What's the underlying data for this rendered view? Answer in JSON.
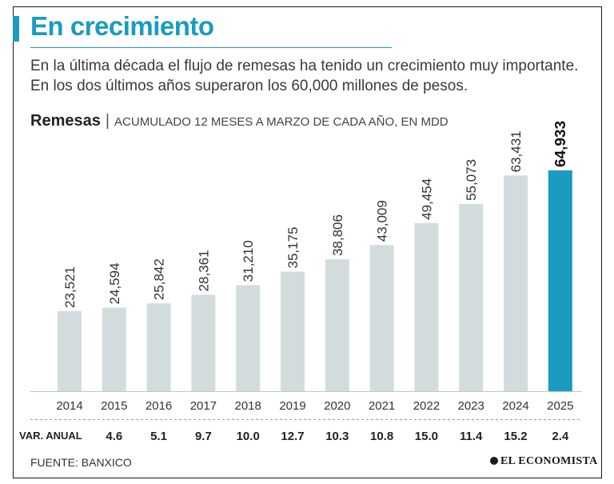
{
  "header": {
    "title": "En crecimiento",
    "description": "En la última década el flujo de remesas ha tenido un crecimiento muy importante. En los dos últimos años superaron los 60,000 millones de pesos.",
    "subtitle_bold": "Remesas",
    "subtitle_sep": "|",
    "subtitle_rest": "ACUMULADO 12 MESES A MARZO DE CADA AÑO,  EN MDD"
  },
  "colors": {
    "accent": "#1a9bbf",
    "bar": "#d3dcdd",
    "highlight": "#1a9bbf"
  },
  "chart_data": {
    "type": "bar",
    "title": "Remesas",
    "subtitle": "ACUMULADO 12 MESES A MARZO DE CADA AÑO,  EN MDD",
    "categories": [
      "2014",
      "2015",
      "2016",
      "2017",
      "2018",
      "2019",
      "2020",
      "2021",
      "2022",
      "2023",
      "2024",
      "2025"
    ],
    "values": [
      23521,
      24594,
      25842,
      28361,
      31210,
      35175,
      38806,
      43009,
      49454,
      55073,
      63431,
      64933
    ],
    "value_labels": [
      "23,521",
      "24,594",
      "25,842",
      "28,361",
      "31,210",
      "35,175",
      "38,806",
      "43,009",
      "49,454",
      "55,073",
      "63,431",
      "64,933"
    ],
    "highlight_index": 11,
    "ylim": [
      0,
      64933
    ],
    "grid": false,
    "var_anual_label": "VAR. ANUAL",
    "var_anual": [
      "4.6",
      "5.1",
      "9.7",
      "10.0",
      "12.7",
      "10.3",
      "10.8",
      "15.0",
      "11.4",
      "15.2",
      "2.4"
    ]
  },
  "footer": {
    "source": "FUENTE: BANXICO",
    "brand": "EL ECONOMISTA"
  }
}
